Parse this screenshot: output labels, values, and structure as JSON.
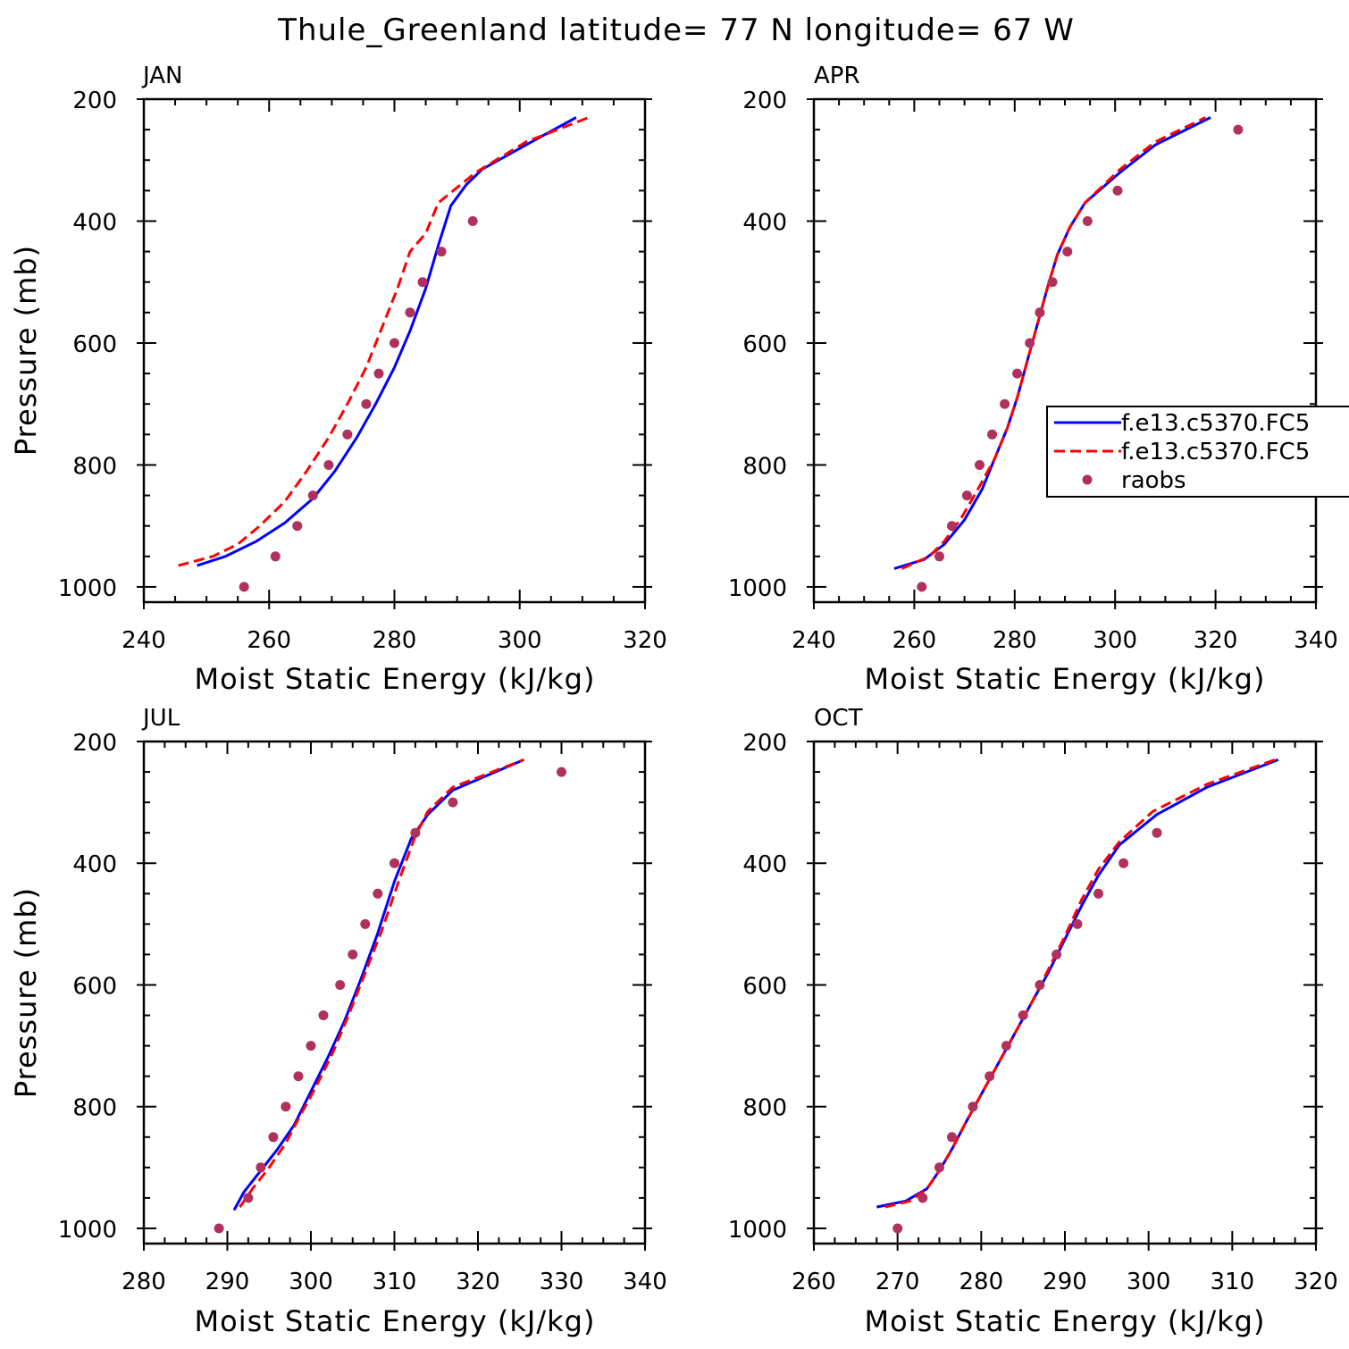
{
  "title": "Thule_Greenland  latitude= 77 N longitude= 67 W",
  "colors": {
    "model1": "#0000ff",
    "model2": "#ff0000",
    "raobs": "#b03060",
    "frame": "#000000"
  },
  "legend": {
    "entries": [
      {
        "label": "f.e13.c5370.FC5",
        "style": "solid",
        "series": "model1"
      },
      {
        "label": "f.e13.c5370.FC5",
        "style": "dashed",
        "series": "model2"
      },
      {
        "label": "raobs",
        "style": "dots",
        "series": "raobs"
      }
    ],
    "placement": "right of APR panel (clipped at figure edge)"
  },
  "chart_data": [
    {
      "type": "line",
      "panel": "JAN",
      "xlabel": "Moist Static Energy (kJ/kg)",
      "ylabel": "Pressure (mb)",
      "xlim": [
        240,
        320
      ],
      "ylim": [
        1025,
        200
      ],
      "xticks": [
        240,
        260,
        280,
        300,
        320
      ],
      "yticks": [
        200,
        400,
        600,
        800,
        1000
      ],
      "series": [
        {
          "key": "model1",
          "name": "f.e13.c5370.FC5",
          "style": "solid",
          "points": [
            [
              248.5,
              965
            ],
            [
              253,
              950
            ],
            [
              258,
              925
            ],
            [
              262.5,
              895
            ],
            [
              267,
              855
            ],
            [
              270.5,
              810
            ],
            [
              274,
              755
            ],
            [
              277,
              700
            ],
            [
              280,
              640
            ],
            [
              282.5,
              580
            ],
            [
              285,
              510
            ],
            [
              287,
              440
            ],
            [
              289,
              375
            ],
            [
              291.5,
              340
            ],
            [
              294,
              315
            ],
            [
              301,
              275
            ],
            [
              309,
              230
            ]
          ]
        },
        {
          "key": "model2",
          "name": "f.e13.c5370.FC5",
          "style": "dashed",
          "points": [
            [
              245.5,
              965
            ],
            [
              251,
              950
            ],
            [
              255,
              930
            ],
            [
              258.5,
              900
            ],
            [
              262.5,
              860
            ],
            [
              266,
              810
            ],
            [
              269.5,
              755
            ],
            [
              272.5,
              700
            ],
            [
              275.5,
              640
            ],
            [
              278,
              575
            ],
            [
              280.5,
              510
            ],
            [
              282.5,
              450
            ],
            [
              285,
              420
            ],
            [
              287,
              370
            ],
            [
              293,
              320
            ],
            [
              301,
              270
            ],
            [
              311,
              230
            ]
          ]
        },
        {
          "key": "raobs",
          "name": "raobs",
          "style": "dots",
          "points": [
            [
              256,
              1000
            ],
            [
              261,
              950
            ],
            [
              264.5,
              900
            ],
            [
              267,
              850
            ],
            [
              269.5,
              800
            ],
            [
              272.5,
              750
            ],
            [
              275.5,
              700
            ],
            [
              277.5,
              650
            ],
            [
              280,
              600
            ],
            [
              282.5,
              550
            ],
            [
              284.5,
              500
            ],
            [
              287.5,
              450
            ],
            [
              292.5,
              400
            ]
          ]
        }
      ]
    },
    {
      "type": "line",
      "panel": "APR",
      "xlabel": "Moist Static Energy (kJ/kg)",
      "ylabel": "",
      "xlim": [
        240,
        340
      ],
      "ylim": [
        1025,
        200
      ],
      "xticks": [
        240,
        260,
        280,
        300,
        320,
        340
      ],
      "yticks": [
        200,
        400,
        600,
        800,
        1000
      ],
      "series": [
        {
          "key": "model1",
          "name": "f.e13.c5370.FC5",
          "style": "solid",
          "points": [
            [
              256,
              970
            ],
            [
              262,
              955
            ],
            [
              266,
              930
            ],
            [
              270,
              890
            ],
            [
              273.5,
              840
            ],
            [
              276,
              790
            ],
            [
              278.5,
              740
            ],
            [
              280.5,
              690
            ],
            [
              282.5,
              630
            ],
            [
              284.5,
              570
            ],
            [
              286.5,
              510
            ],
            [
              288.5,
              455
            ],
            [
              291,
              410
            ],
            [
              294,
              370
            ],
            [
              301,
              320
            ],
            [
              308,
              275
            ],
            [
              319,
              230
            ]
          ]
        },
        {
          "key": "model2",
          "name": "f.e13.c5370.FC5",
          "style": "dashed",
          "points": [
            [
              257.5,
              970
            ],
            [
              263,
              950
            ],
            [
              266,
              925
            ],
            [
              269.5,
              885
            ],
            [
              273,
              835
            ],
            [
              276,
              790
            ],
            [
              278.5,
              740
            ],
            [
              280.5,
              690
            ],
            [
              282.5,
              630
            ],
            [
              284.5,
              570
            ],
            [
              286.5,
              510
            ],
            [
              288.5,
              455
            ],
            [
              291,
              410
            ],
            [
              294,
              370
            ],
            [
              301,
              315
            ],
            [
              308,
              270
            ],
            [
              318,
              230
            ]
          ]
        },
        {
          "key": "raobs",
          "name": "raobs",
          "style": "dots",
          "points": [
            [
              261.5,
              1000
            ],
            [
              265,
              950
            ],
            [
              267.5,
              900
            ],
            [
              270.5,
              850
            ],
            [
              273,
              800
            ],
            [
              275.5,
              750
            ],
            [
              278,
              700
            ],
            [
              280.5,
              650
            ],
            [
              283,
              600
            ],
            [
              285,
              550
            ],
            [
              287.5,
              500
            ],
            [
              290.5,
              450
            ],
            [
              294.5,
              400
            ],
            [
              300.5,
              350
            ],
            [
              324.5,
              250
            ]
          ]
        }
      ]
    },
    {
      "type": "line",
      "panel": "JUL",
      "xlabel": "Moist Static Energy (kJ/kg)",
      "ylabel": "Pressure (mb)",
      "xlim": [
        280,
        340
      ],
      "ylim": [
        1025,
        200
      ],
      "xticks": [
        280,
        290,
        300,
        310,
        320,
        330,
        340
      ],
      "yticks": [
        200,
        400,
        600,
        800,
        1000
      ],
      "series": [
        {
          "key": "model1",
          "name": "f.e13.c5370.FC5",
          "style": "solid",
          "points": [
            [
              290.8,
              970
            ],
            [
              292,
              940
            ],
            [
              294,
              905
            ],
            [
              296,
              870
            ],
            [
              298,
              830
            ],
            [
              300,
              775
            ],
            [
              302,
              720
            ],
            [
              304,
              660
            ],
            [
              306,
              590
            ],
            [
              308,
              515
            ],
            [
              310,
              430
            ],
            [
              312,
              360
            ],
            [
              314,
              320
            ],
            [
              317,
              280
            ],
            [
              325.5,
              230
            ]
          ]
        },
        {
          "key": "model2",
          "name": "f.e13.c5370.FC5",
          "style": "dashed",
          "points": [
            [
              291.5,
              965
            ],
            [
              293,
              935
            ],
            [
              295,
              900
            ],
            [
              297,
              860
            ],
            [
              298.5,
              820
            ],
            [
              300.5,
              770
            ],
            [
              302.5,
              715
            ],
            [
              304.5,
              650
            ],
            [
              306.5,
              580
            ],
            [
              308.5,
              510
            ],
            [
              310.5,
              430
            ],
            [
              312.5,
              355
            ],
            [
              314,
              315
            ],
            [
              317,
              275
            ],
            [
              325.5,
              230
            ]
          ]
        },
        {
          "key": "raobs",
          "name": "raobs",
          "style": "dots",
          "points": [
            [
              289,
              1000
            ],
            [
              292.5,
              950
            ],
            [
              294,
              900
            ],
            [
              295.5,
              850
            ],
            [
              297,
              800
            ],
            [
              298.5,
              750
            ],
            [
              300,
              700
            ],
            [
              301.5,
              650
            ],
            [
              303.5,
              600
            ],
            [
              305,
              550
            ],
            [
              306.5,
              500
            ],
            [
              308,
              450
            ],
            [
              310,
              400
            ],
            [
              312.5,
              350
            ],
            [
              317,
              300
            ],
            [
              330,
              250
            ]
          ]
        }
      ]
    },
    {
      "type": "line",
      "panel": "OCT",
      "xlabel": "Moist Static Energy (kJ/kg)",
      "ylabel": "",
      "xlim": [
        260,
        320
      ],
      "ylim": [
        1025,
        200
      ],
      "xticks": [
        260,
        270,
        280,
        290,
        300,
        310,
        320
      ],
      "yticks": [
        200,
        400,
        600,
        800,
        1000
      ],
      "series": [
        {
          "key": "model1",
          "name": "f.e13.c5370.FC5",
          "style": "solid",
          "points": [
            [
              267.5,
              965
            ],
            [
              271,
              955
            ],
            [
              273.5,
              935
            ],
            [
              275,
              905
            ],
            [
              276.5,
              870
            ],
            [
              278,
              830
            ],
            [
              280,
              780
            ],
            [
              282,
              730
            ],
            [
              284,
              680
            ],
            [
              286,
              630
            ],
            [
              288,
              580
            ],
            [
              290,
              525
            ],
            [
              292,
              470
            ],
            [
              294,
              420
            ],
            [
              296.5,
              370
            ],
            [
              301,
              320
            ],
            [
              307,
              275
            ],
            [
              315.5,
              230
            ]
          ]
        },
        {
          "key": "model2",
          "name": "f.e13.c5370.FC5",
          "style": "dashed",
          "points": [
            [
              268.5,
              965
            ],
            [
              271.5,
              955
            ],
            [
              273.5,
              935
            ],
            [
              275,
              905
            ],
            [
              276.5,
              870
            ],
            [
              278,
              830
            ],
            [
              280,
              780
            ],
            [
              282,
              730
            ],
            [
              284,
              680
            ],
            [
              286,
              630
            ],
            [
              288,
              575
            ],
            [
              290,
              520
            ],
            [
              292,
              460
            ],
            [
              294,
              410
            ],
            [
              296.5,
              365
            ],
            [
              300.5,
              315
            ],
            [
              307,
              270
            ],
            [
              315.5,
              228
            ]
          ]
        },
        {
          "key": "raobs",
          "name": "raobs",
          "style": "dots",
          "points": [
            [
              270,
              1000
            ],
            [
              273,
              950
            ],
            [
              275,
              900
            ],
            [
              276.5,
              850
            ],
            [
              279,
              800
            ],
            [
              281,
              750
            ],
            [
              283,
              700
            ],
            [
              285,
              650
            ],
            [
              287,
              600
            ],
            [
              289,
              550
            ],
            [
              291.5,
              500
            ],
            [
              294,
              450
            ],
            [
              297,
              400
            ],
            [
              301,
              350
            ]
          ]
        }
      ]
    }
  ]
}
